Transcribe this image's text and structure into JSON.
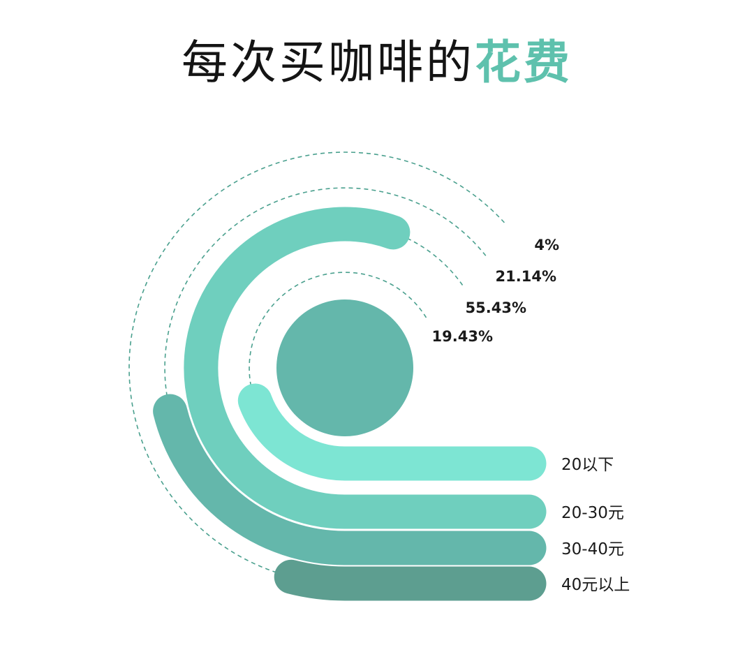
{
  "title": {
    "main": "每次买咖啡的",
    "highlight": "花费"
  },
  "colors": {
    "highlight": "#5ec1ad",
    "dashed_guides": "#4aa08e"
  },
  "chart_data": {
    "type": "radial-bar",
    "title": "每次买咖啡的花费",
    "unit": "%",
    "categories": [
      "20以下",
      "20-30元",
      "30-40元",
      "40元以上"
    ],
    "values": [
      19.43,
      55.43,
      21.14,
      4
    ],
    "value_labels": [
      "19.43%",
      "55.43%",
      "21.14%",
      "4%"
    ],
    "colors": [
      "#7de5d3",
      "#6fcfbe",
      "#64b7ab",
      "#5d9e90"
    ],
    "legend_placement": "right, beside each bar end"
  }
}
